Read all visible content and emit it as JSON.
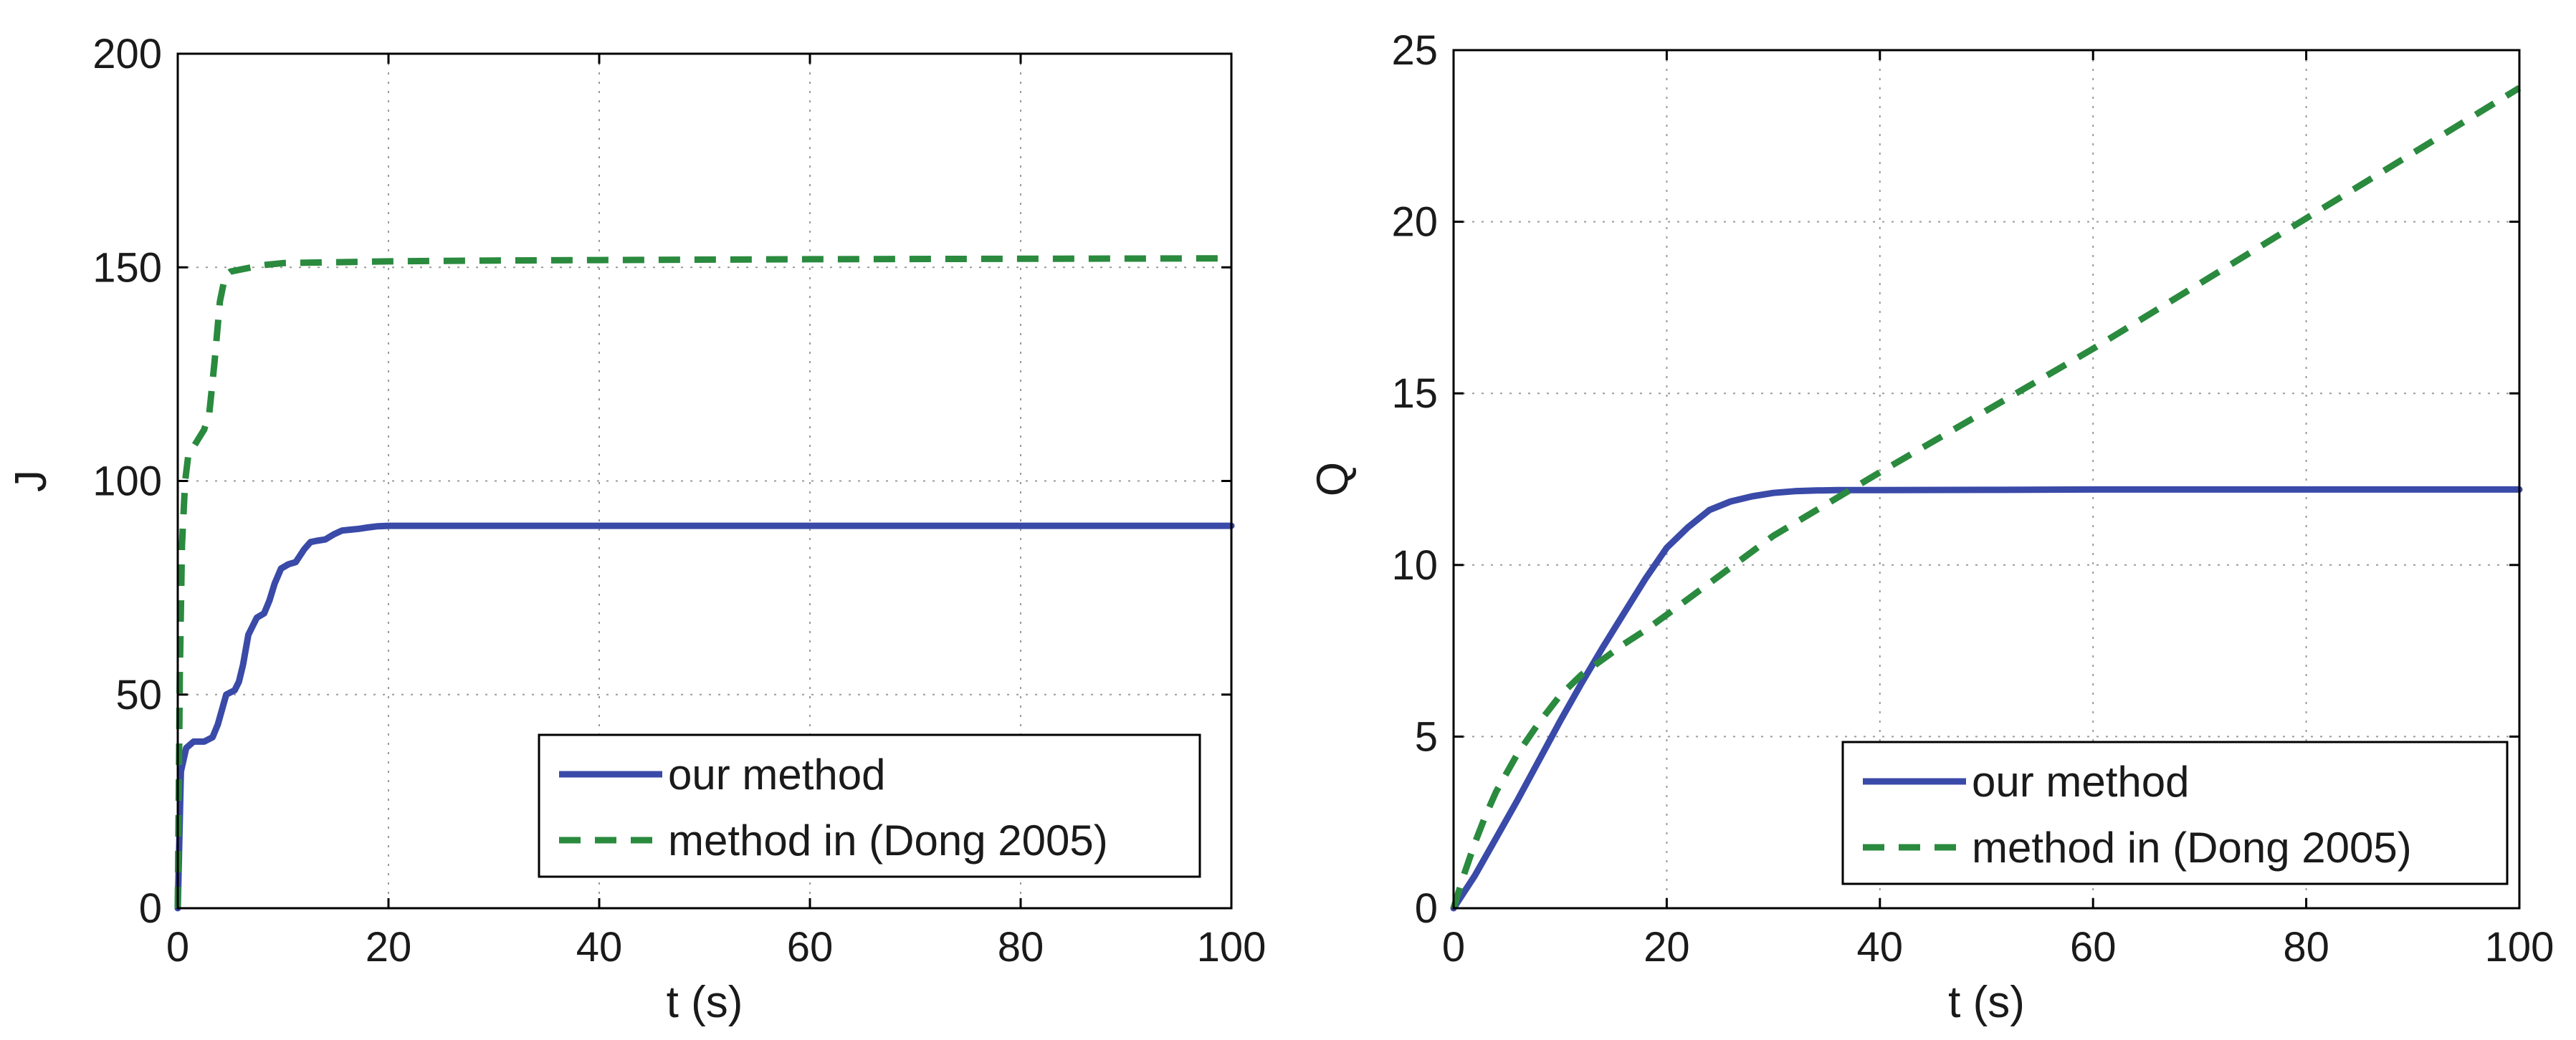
{
  "chart_data": [
    {
      "type": "line",
      "title": "",
      "xlabel": "t (s)",
      "ylabel": "J",
      "xlim": [
        0,
        100
      ],
      "ylim": [
        0,
        200
      ],
      "xticks": [
        0,
        20,
        40,
        60,
        80,
        100
      ],
      "yticks": [
        0,
        50,
        100,
        150,
        200
      ],
      "grid": true,
      "legend_position": "bottom-right",
      "series": [
        {
          "name": "our method",
          "color": "#3a4aa8",
          "style": "solid",
          "x": [
            0,
            0.3,
            0.8,
            1.5,
            2.5,
            3.3,
            3.8,
            4.6,
            5.4,
            5.8,
            6.2,
            6.7,
            7.5,
            8.2,
            8.7,
            9.2,
            9.8,
            10.5,
            11.2,
            12,
            12.6,
            13.2,
            14,
            14.8,
            15.6,
            16.4,
            17.2,
            18,
            19,
            20,
            21,
            30,
            50,
            70,
            100
          ],
          "values": [
            0,
            32,
            37.5,
            39,
            39,
            40,
            43,
            50,
            51,
            53,
            57,
            64,
            68,
            69,
            72,
            76,
            79.5,
            80.5,
            81,
            84,
            85.7,
            86,
            86.3,
            87.5,
            88.4,
            88.6,
            88.8,
            89.1,
            89.4,
            89.5,
            89.5,
            89.5,
            89.5,
            89.5,
            89.5
          ]
        },
        {
          "name": "method in (Dong 2005)",
          "color": "#2a8a3e",
          "style": "dashed",
          "x": [
            0,
            0.2,
            0.4,
            0.7,
            1.0,
            1.5,
            2.0,
            2.5,
            3.0,
            3.5,
            4.0,
            4.5,
            5.0,
            6.0,
            8.0,
            10,
            15,
            20,
            30,
            40,
            60,
            80,
            100
          ],
          "values": [
            0,
            55,
            85,
            100,
            106,
            108,
            110,
            112,
            116,
            128,
            142,
            148,
            149,
            149.5,
            150.5,
            151,
            151.2,
            151.4,
            151.6,
            151.7,
            151.9,
            152.0,
            152.1
          ]
        }
      ]
    },
    {
      "type": "line",
      "title": "",
      "xlabel": "t (s)",
      "ylabel": "Q",
      "xlim": [
        0,
        100
      ],
      "ylim": [
        0,
        25
      ],
      "xticks": [
        0,
        20,
        40,
        60,
        80,
        100
      ],
      "yticks": [
        0,
        5,
        10,
        15,
        20,
        25
      ],
      "grid": true,
      "legend_position": "bottom-right",
      "series": [
        {
          "name": "our method",
          "color": "#3a4aa8",
          "style": "solid",
          "x": [
            0,
            2,
            4,
            6,
            8,
            10,
            12,
            14,
            16,
            18,
            20,
            22,
            24,
            26,
            28,
            30,
            32,
            34,
            36,
            38,
            40,
            50,
            60,
            80,
            100
          ],
          "values": [
            0,
            0.95,
            2.05,
            3.15,
            4.3,
            5.45,
            6.55,
            7.6,
            8.6,
            9.6,
            10.5,
            11.1,
            11.6,
            11.85,
            12.0,
            12.1,
            12.15,
            12.17,
            12.18,
            12.18,
            12.18,
            12.19,
            12.2,
            12.2,
            12.2
          ]
        },
        {
          "name": "method in (Dong 2005)",
          "color": "#2a8a3e",
          "style": "dashed",
          "x": [
            0,
            1,
            2,
            3,
            4,
            6,
            8,
            10,
            12,
            14,
            16,
            18,
            20,
            25,
            30,
            40,
            50,
            60,
            70,
            80,
            90,
            100
          ],
          "values": [
            0,
            1.0,
            1.9,
            2.7,
            3.4,
            4.5,
            5.4,
            6.2,
            6.8,
            7.25,
            7.7,
            8.1,
            8.55,
            9.7,
            10.85,
            12.7,
            14.5,
            16.3,
            18.2,
            20.1,
            22.0,
            23.9
          ]
        }
      ]
    }
  ]
}
